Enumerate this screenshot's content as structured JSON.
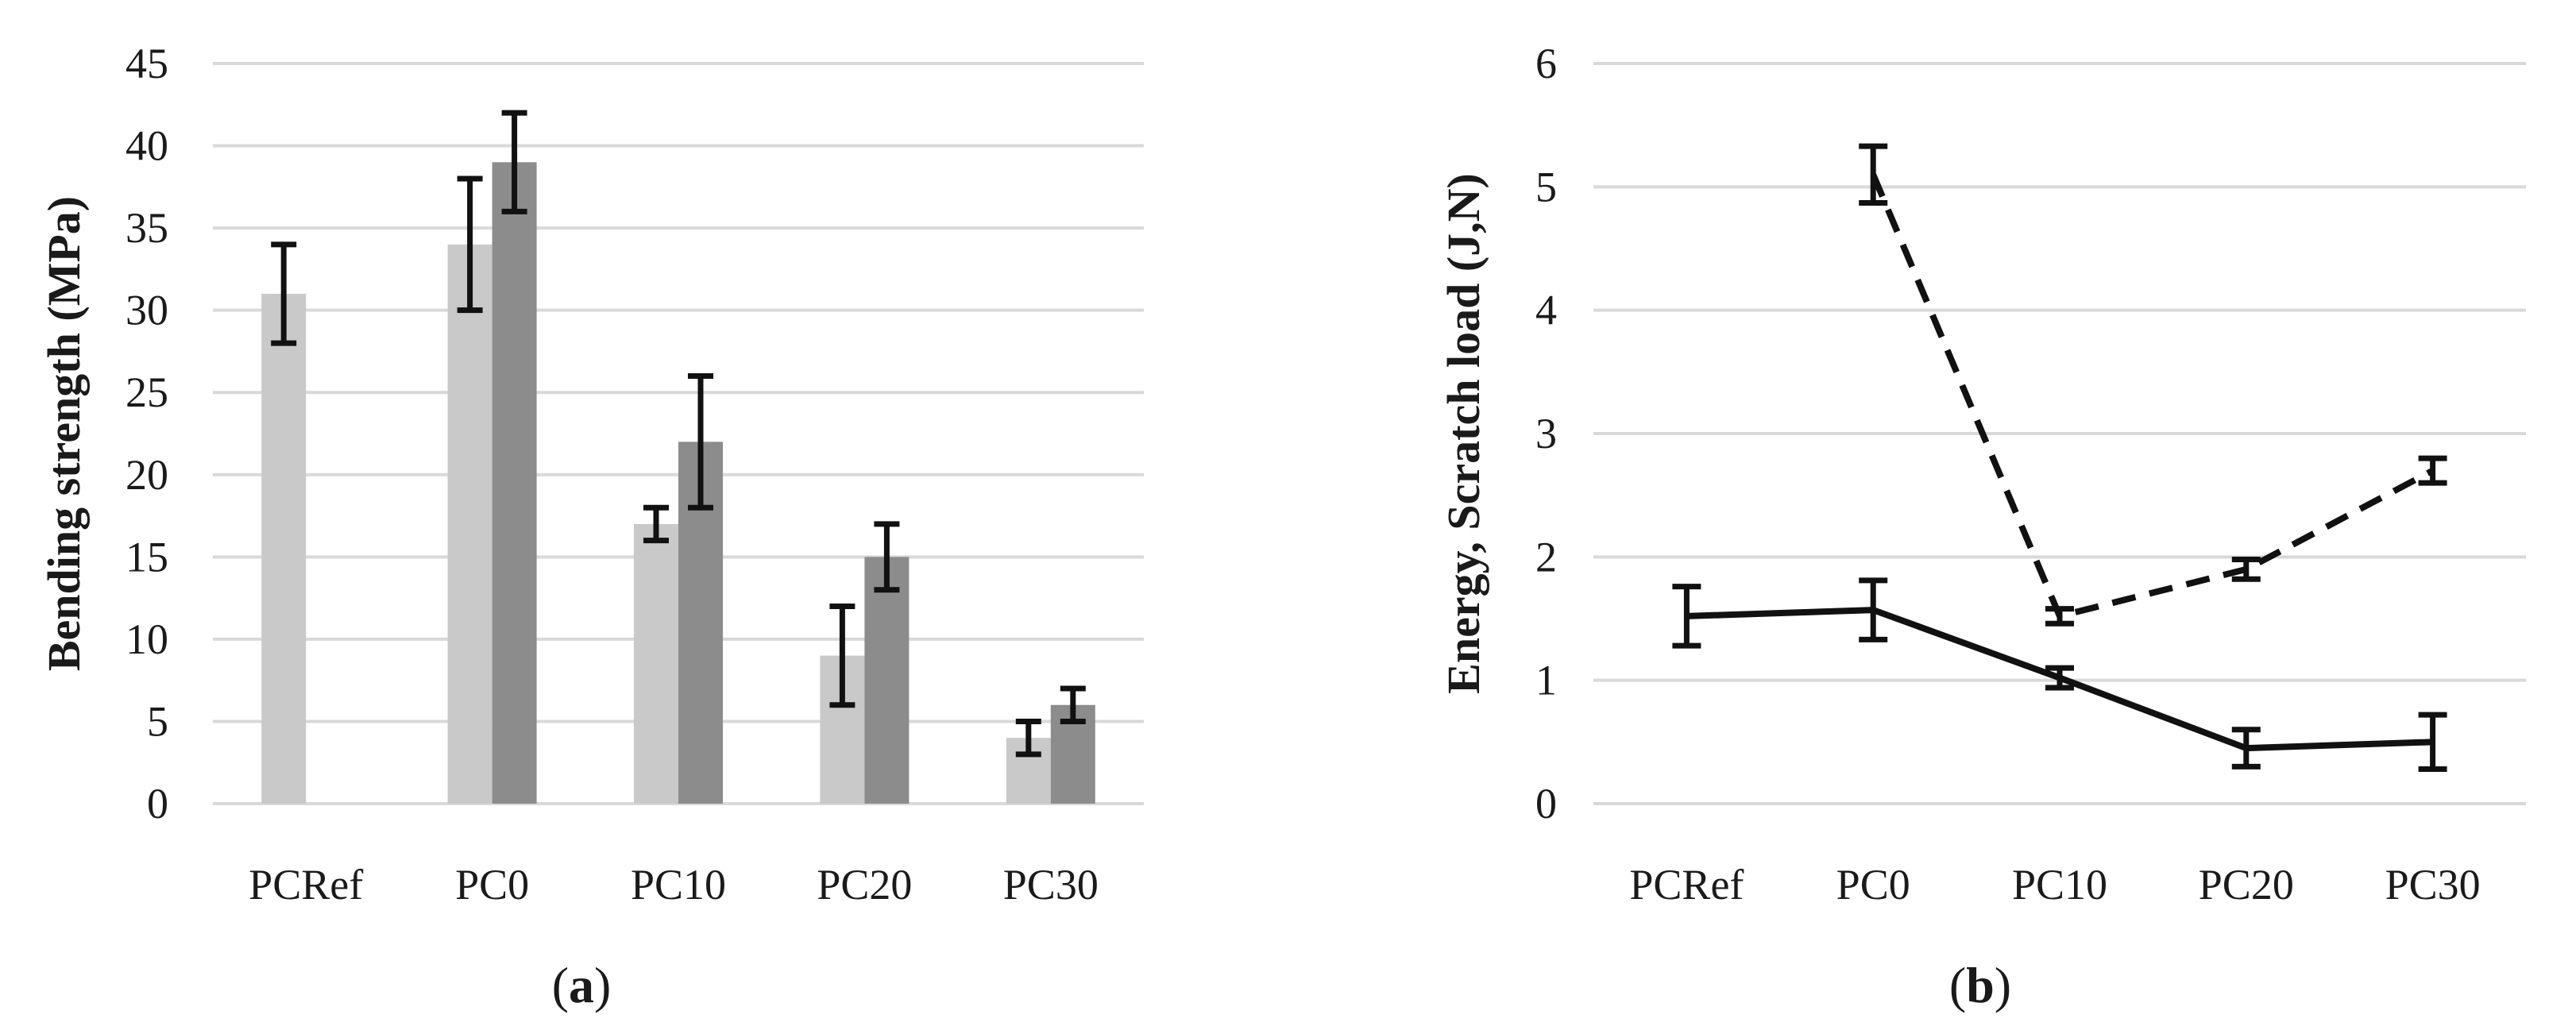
{
  "chart_data": [
    {
      "type": "bar",
      "panel": "(a)",
      "categories": [
        "PCRef",
        "PC0",
        "PC10",
        "PC20",
        "PC30"
      ],
      "series": [
        {
          "color": "#c9c9c9",
          "values": [
            31,
            34,
            17,
            9,
            4
          ],
          "errors": [
            3,
            4,
            1,
            3,
            1
          ]
        },
        {
          "color": "#8c8c8c",
          "values": [
            null,
            39,
            22,
            15,
            6
          ],
          "errors": [
            null,
            3,
            4,
            2,
            1
          ]
        }
      ],
      "ylabel": "Bending strength (MPa)",
      "ylim": [
        0,
        45
      ],
      "yticks": [
        0,
        5,
        10,
        15,
        20,
        25,
        30,
        35,
        40,
        45
      ],
      "grid": true
    },
    {
      "type": "line",
      "panel": "(b)",
      "categories": [
        "PCRef",
        "PC0",
        "PC10",
        "PC20",
        "PC30"
      ],
      "series": [
        {
          "style": "solid",
          "values": [
            1.52,
            1.57,
            1.02,
            0.45,
            0.5
          ],
          "errors": [
            0.24,
            0.24,
            0.08,
            0.15,
            0.22
          ]
        },
        {
          "style": "dashed",
          "values": [
            null,
            5.1,
            1.52,
            1.9,
            2.7
          ],
          "errors": [
            null,
            0.23,
            0.06,
            0.08,
            0.1
          ]
        }
      ],
      "ylabel": "Energy, Scratch load (J,N)",
      "ylim": [
        0,
        6
      ],
      "yticks": [
        0,
        1,
        2,
        3,
        4,
        5,
        6
      ],
      "grid": true
    }
  ],
  "panels": {
    "a": {
      "open": "(",
      "letter": "a",
      "close": ")"
    },
    "b": {
      "open": "(",
      "letter": "b",
      "close": ")"
    }
  }
}
